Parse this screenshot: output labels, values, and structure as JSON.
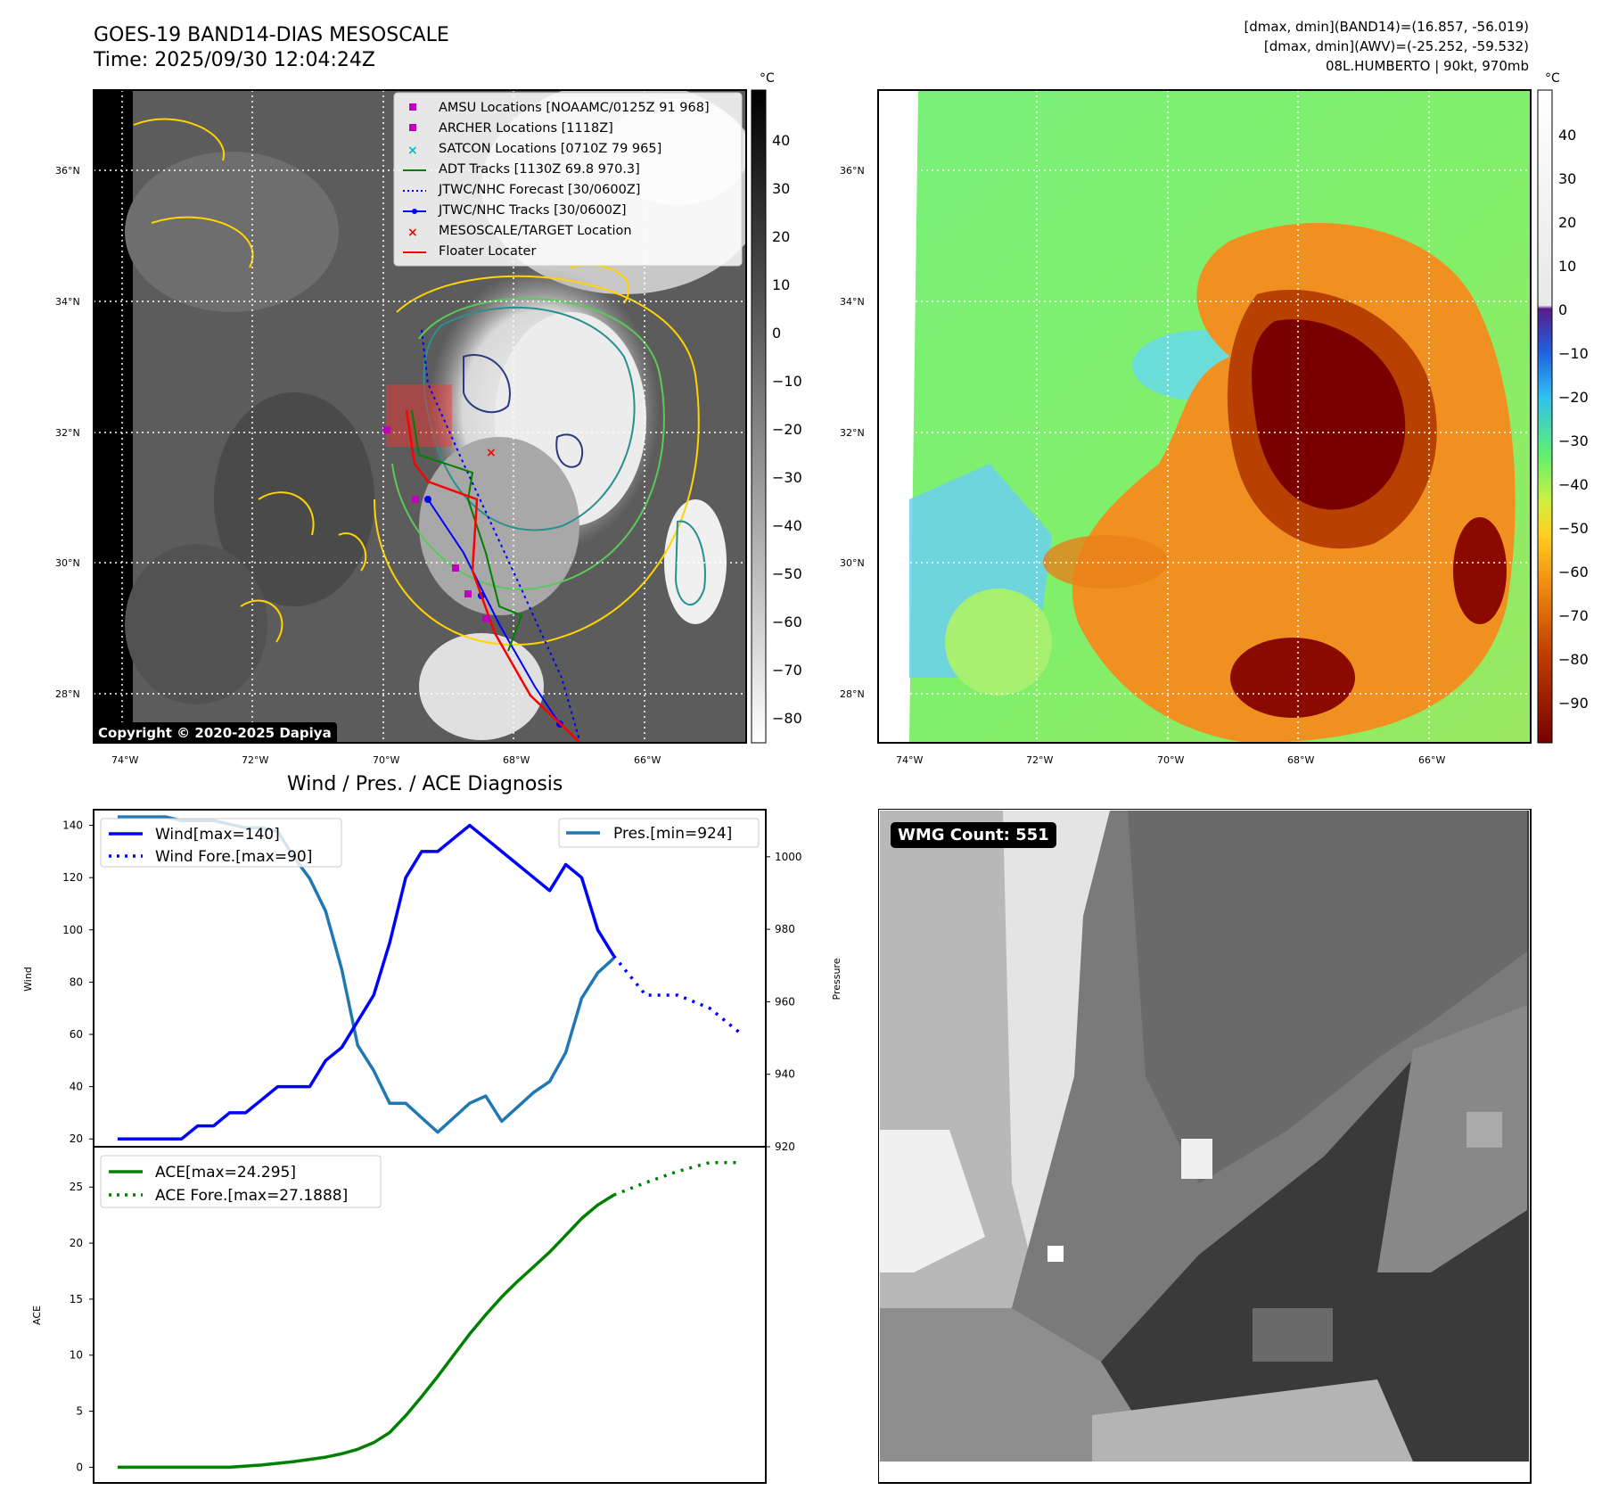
{
  "header": {
    "title_line1": "GOES-19 BAND14-DIAS MESOSCALE",
    "title_line2": "Time: 2025/09/30 12:04:24Z",
    "info_line1": "[dmax, dmin](BAND14)=(16.857, -56.019)",
    "info_line2": "[dmax, dmin](AWV)=(-25.252, -59.532)",
    "info_line3": "08L.HUMBERTO | 90kt, 970mb"
  },
  "map_panel": {
    "lat_labels": [
      "36°N",
      "34°N",
      "32°N",
      "30°N",
      "28°N"
    ],
    "lon_labels": [
      "74°W",
      "72°W",
      "70°W",
      "68°W",
      "66°W"
    ],
    "copyright": "Copyright © 2020-2025 Dapiya",
    "legend": [
      {
        "label": "AMSU Locations [NOAAMC/0125Z 91 968]",
        "color": "#bf00bf",
        "marker": "square"
      },
      {
        "label": "ARCHER Locations [1118Z]",
        "color": "#bf00bf",
        "marker": "square"
      },
      {
        "label": "SATCON Locations [0710Z 79 965]",
        "color": "#00bfbf",
        "marker": "x"
      },
      {
        "label": "ADT Tracks [1130Z 69.8 970.3]",
        "color": "#008000",
        "marker": "line"
      },
      {
        "label": "JTWC/NHC Forecast [30/0600Z]",
        "color": "#0000ff",
        "marker": "dotted"
      },
      {
        "label": "JTWC/NHC Tracks [30/0600Z]",
        "color": "#0000ff",
        "marker": "line-dot"
      },
      {
        "label": "MESOSCALE/TARGET Location",
        "color": "#ff0000",
        "marker": "x"
      },
      {
        "label": "Floater Locater",
        "color": "#ff0000",
        "marker": "line"
      }
    ]
  },
  "colorbar_gray": {
    "unit": "°C",
    "ticks": [
      "40",
      "30",
      "20",
      "10",
      "0",
      "−10",
      "−20",
      "−30",
      "−40",
      "−50",
      "−60",
      "−70",
      "−80"
    ]
  },
  "colorbar_color": {
    "unit": "°C",
    "ticks": [
      "40",
      "30",
      "20",
      "10",
      "0",
      "−10",
      "−20",
      "−30",
      "−40",
      "−50",
      "−60",
      "−70",
      "−80",
      "−90"
    ]
  },
  "diag_title": "Wind / Pres. / ACE Diagnosis",
  "wmg_label": "WMG Count: 551",
  "chart_data": [
    {
      "type": "line",
      "title": "Wind / Pres. / ACE Diagnosis",
      "ylabel": "Wind",
      "y2label": "Pressure",
      "ylim": [
        17,
        146
      ],
      "y2lim": [
        920,
        1013
      ],
      "yticks": [
        "20",
        "40",
        "60",
        "80",
        "100",
        "120",
        "140"
      ],
      "y2ticks": [
        "920",
        "940",
        "960",
        "980",
        "1000"
      ],
      "x_index": [
        0,
        1,
        2,
        3,
        4,
        5,
        6,
        7,
        8,
        9,
        10,
        11,
        12,
        13,
        14,
        15,
        16,
        17,
        18,
        19,
        20,
        21,
        22,
        23,
        24,
        25,
        26,
        27,
        28,
        29,
        30,
        31,
        32,
        33,
        34,
        35,
        36,
        37,
        38,
        39
      ],
      "series": [
        {
          "name": "Wind[max=140]",
          "axis": "left",
          "color": "#0000ff",
          "style": "solid",
          "x": [
            0,
            1,
            2,
            3,
            4,
            5,
            6,
            7,
            8,
            9,
            10,
            11,
            12,
            13,
            14,
            15,
            16,
            17,
            18,
            19,
            20,
            21,
            22,
            23,
            24,
            25,
            26,
            27,
            28,
            29,
            30,
            31
          ],
          "values": [
            20,
            20,
            20,
            20,
            20,
            25,
            25,
            30,
            30,
            35,
            40,
            40,
            40,
            50,
            55,
            65,
            75,
            95,
            120,
            130,
            130,
            135,
            140,
            135,
            130,
            125,
            120,
            115,
            125,
            120,
            100,
            90
          ]
        },
        {
          "name": "Wind Fore.[max=90]",
          "axis": "left",
          "color": "#0000ff",
          "style": "dotted",
          "x": [
            31,
            33,
            35,
            37,
            39
          ],
          "values": [
            90,
            75,
            75,
            70,
            60
          ]
        },
        {
          "name": "Pres.[min=924]",
          "axis": "right",
          "color": "#1f77b4",
          "style": "solid",
          "x": [
            0,
            1,
            2,
            3,
            4,
            5,
            6,
            7,
            8,
            9,
            10,
            11,
            12,
            13,
            14,
            15,
            16,
            17,
            18,
            19,
            20,
            21,
            22,
            23,
            24,
            25,
            26,
            27,
            28,
            29,
            30,
            31
          ],
          "values": [
            1011,
            1011,
            1011,
            1011,
            1010,
            1010,
            1010,
            1009,
            1008,
            1008,
            1007,
            1000,
            994,
            985,
            969,
            948,
            941,
            932,
            932,
            928,
            924,
            928,
            932,
            934,
            927,
            931,
            935,
            938,
            946,
            961,
            968,
            972
          ]
        }
      ]
    },
    {
      "type": "line",
      "ylabel": "ACE",
      "ylim": [
        -1.4,
        28.6
      ],
      "yticks": [
        "0",
        "5",
        "10",
        "15",
        "20",
        "25"
      ],
      "series": [
        {
          "name": "ACE[max=24.295]",
          "color": "#008000",
          "style": "solid",
          "x": [
            0,
            1,
            2,
            3,
            4,
            5,
            6,
            7,
            8,
            9,
            10,
            11,
            12,
            13,
            14,
            15,
            16,
            17,
            18,
            19,
            20,
            21,
            22,
            23,
            24,
            25,
            26,
            27,
            28,
            29,
            30,
            31
          ],
          "values": [
            0,
            0,
            0,
            0,
            0,
            0,
            0,
            0,
            0.1,
            0.2,
            0.35,
            0.5,
            0.7,
            0.9,
            1.2,
            1.6,
            2.2,
            3.1,
            4.6,
            6.3,
            8.1,
            10,
            11.9,
            13.6,
            15.2,
            16.6,
            17.9,
            19.2,
            20.7,
            22.2,
            23.4,
            24.295
          ]
        },
        {
          "name": "ACE Fore.[max=27.1888]",
          "color": "#008000",
          "style": "dotted",
          "x": [
            31,
            33,
            35,
            37,
            39
          ],
          "values": [
            24.295,
            25.4,
            26.4,
            27.1888,
            27.1888
          ]
        }
      ]
    }
  ]
}
